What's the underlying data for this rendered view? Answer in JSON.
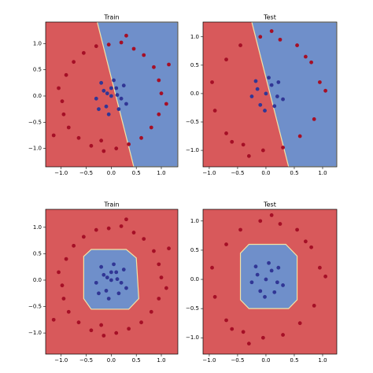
{
  "chart_data": [
    {
      "type": "scatter",
      "title": "Train",
      "xlim": [
        -1.31,
        1.33
      ],
      "ylim": [
        -1.35,
        1.41
      ],
      "xticks": [
        {
          "value": -1,
          "label": "−1.0"
        },
        {
          "value": -0.5,
          "label": "−0.5"
        },
        {
          "value": 0,
          "label": "0.0"
        },
        0.5,
        {
          "value": 1,
          "label": "1.0"
        }
      ],
      "yticks": [
        {
          "value": -1,
          "label": "−1.0"
        },
        {
          "value": -0.5,
          "label": "−0.5"
        },
        {
          "value": 0,
          "label": "0.0"
        },
        0.5,
        {
          "value": 1,
          "label": "1.0"
        }
      ],
      "background": "#d8595b",
      "region": {
        "color": "#6f8fca",
        "x": [
          -0.28,
          1.33,
          1.33,
          0.45
        ],
        "y": [
          1.41,
          1.41,
          -1.35,
          -1.35
        ]
      },
      "series": [
        {
          "color": "#a50f26",
          "x": [
            1.0,
            0.95,
            0.85,
            0.65,
            0.45,
            0.2,
            -0.05,
            -0.3,
            -0.55,
            -0.75,
            -0.9,
            -1.05,
            -0.98,
            -0.95,
            -0.85,
            -0.65,
            -0.4,
            -0.15,
            0.1,
            0.35,
            0.6,
            0.8,
            0.95,
            1.1,
            1.15,
            -1.15,
            0.3,
            -0.2
          ],
          "y": [
            0.05,
            0.3,
            0.55,
            0.78,
            0.9,
            1.02,
            0.98,
            0.95,
            0.82,
            0.65,
            0.4,
            0.15,
            -0.1,
            -0.35,
            -0.6,
            -0.8,
            -0.95,
            -1.05,
            -1.0,
            -0.92,
            -0.8,
            -0.6,
            -0.35,
            -0.15,
            0.6,
            -0.75,
            1.15,
            -0.85
          ]
        },
        {
          "color": "#313695",
          "x": [
            0,
            0.1,
            -0.15,
            0.2,
            -0.1,
            0.05,
            -0.3,
            0.25,
            -0.2,
            0.15,
            -0.05,
            0.3,
            -0.25,
            0.0,
            0.12,
            -0.08
          ],
          "y": [
            0,
            0.15,
            0.1,
            -0.05,
            -0.2,
            0.3,
            -0.05,
            0.2,
            0.25,
            -0.25,
            -0.35,
            -0.15,
            -0.25,
            0.15,
            0.02,
            0.05
          ]
        }
      ]
    },
    {
      "type": "scatter",
      "title": "Test",
      "xlim": [
        -1.11,
        1.25
      ],
      "ylim": [
        -1.29,
        1.26
      ],
      "xticks": [
        {
          "value": -1,
          "label": "−1.0"
        },
        {
          "value": -0.5,
          "label": "−0.5"
        },
        {
          "value": 0,
          "label": "0.0"
        },
        0.5,
        {
          "value": 1,
          "label": "1.0"
        }
      ],
      "yticks": [
        {
          "value": -1,
          "label": "−1.0"
        },
        {
          "value": -0.5,
          "label": "−0.5"
        },
        {
          "value": 0,
          "label": "0.0"
        },
        0.5,
        {
          "value": 1,
          "label": "1.0"
        }
      ],
      "background": "#d8595b",
      "region": {
        "color": "#6f8fca",
        "x": [
          -0.25,
          1.25,
          1.25,
          0.4
        ],
        "y": [
          1.26,
          1.26,
          -1.29,
          -1.29
        ]
      },
      "series": [
        {
          "color": "#a50f26",
          "x": [
            0.95,
            0.8,
            0.55,
            0.25,
            -0.1,
            -0.45,
            -0.7,
            -0.95,
            -0.9,
            -0.7,
            -0.4,
            -0.05,
            0.3,
            0.6,
            0.85,
            1.05,
            0.1,
            -0.6,
            0.7,
            -0.3
          ],
          "y": [
            0.2,
            0.55,
            0.85,
            0.95,
            1.0,
            0.85,
            0.6,
            0.2,
            -0.3,
            -0.7,
            -0.9,
            -1.0,
            -0.95,
            -0.75,
            -0.45,
            0.05,
            1.1,
            -0.85,
            0.65,
            -1.1
          ]
        },
        {
          "color": "#313695",
          "x": [
            0,
            0.1,
            -0.15,
            0.2,
            -0.1,
            0.05,
            -0.25,
            0.22,
            -0.18,
            0.15,
            -0.02,
            0.3
          ],
          "y": [
            0,
            0.15,
            0.08,
            -0.05,
            -0.2,
            0.28,
            -0.05,
            0.2,
            0.22,
            -0.22,
            -0.3,
            -0.1
          ]
        }
      ]
    },
    {
      "type": "scatter",
      "title": "Train",
      "xlim": [
        -1.31,
        1.33
      ],
      "ylim": [
        -1.4,
        1.34
      ],
      "xticks": [
        {
          "value": -1,
          "label": "−1.0"
        },
        {
          "value": -0.5,
          "label": "−0.5"
        },
        {
          "value": 0,
          "label": "0.0"
        },
        0.5,
        {
          "value": 1,
          "label": "1.0"
        }
      ],
      "yticks": [
        {
          "value": -1,
          "label": "−1.0"
        },
        {
          "value": -0.5,
          "label": "−0.5"
        },
        {
          "value": 0,
          "label": "0.0"
        },
        0.5,
        {
          "value": 1,
          "label": "1.0"
        }
      ],
      "background": "#d8595b",
      "region": {
        "color": "#6f8fca",
        "x": [
          -0.55,
          -0.4,
          0.3,
          0.5,
          0.55,
          0.35,
          -0.4,
          -0.55
        ],
        "y": [
          0.45,
          0.58,
          0.58,
          0.42,
          -0.35,
          -0.55,
          -0.55,
          -0.35
        ]
      },
      "series": [
        {
          "color": "#a50f26",
          "x": [
            1.0,
            0.95,
            0.85,
            0.65,
            0.45,
            0.2,
            -0.05,
            -0.3,
            -0.55,
            -0.75,
            -0.9,
            -1.05,
            -0.98,
            -0.95,
            -0.85,
            -0.65,
            -0.4,
            -0.15,
            0.1,
            0.35,
            0.6,
            0.8,
            0.95,
            1.1,
            1.15,
            -1.15,
            0.3,
            -0.2
          ],
          "y": [
            0.05,
            0.3,
            0.55,
            0.78,
            0.9,
            1.02,
            0.98,
            0.95,
            0.82,
            0.65,
            0.4,
            0.15,
            -0.1,
            -0.35,
            -0.6,
            -0.8,
            -0.95,
            -1.05,
            -1.0,
            -0.92,
            -0.8,
            -0.6,
            -0.35,
            -0.15,
            0.6,
            -0.75,
            1.15,
            -0.85
          ]
        },
        {
          "color": "#313695",
          "x": [
            0,
            0.1,
            -0.15,
            0.2,
            -0.1,
            0.05,
            -0.3,
            0.25,
            -0.2,
            0.15,
            -0.05,
            0.3,
            -0.25,
            0.0,
            0.12,
            -0.08
          ],
          "y": [
            0,
            0.15,
            0.1,
            -0.05,
            -0.2,
            0.3,
            -0.05,
            0.2,
            0.25,
            -0.25,
            -0.35,
            -0.15,
            -0.25,
            0.15,
            0.02,
            0.05
          ]
        }
      ]
    },
    {
      "type": "scatter",
      "title": "Test",
      "xlim": [
        -1.11,
        1.25
      ],
      "ylim": [
        -1.28,
        1.2
      ],
      "xticks": [
        {
          "value": -1,
          "label": "−1.0"
        },
        {
          "value": -0.5,
          "label": "−0.5"
        },
        {
          "value": 0,
          "label": "0.0"
        },
        0.5,
        {
          "value": 1,
          "label": "1.0"
        }
      ],
      "yticks": [
        {
          "value": -1,
          "label": "−1.0"
        },
        {
          "value": -0.5,
          "label": "−0.5"
        },
        {
          "value": 0,
          "label": "0.0"
        },
        0.5,
        {
          "value": 1,
          "label": "1.0"
        }
      ],
      "background": "#d8595b",
      "region": {
        "color": "#6f8fca",
        "x": [
          -0.45,
          -0.3,
          0.35,
          0.55,
          0.55,
          0.4,
          -0.3,
          -0.45
        ],
        "y": [
          0.45,
          0.6,
          0.6,
          0.4,
          -0.35,
          -0.5,
          -0.5,
          -0.35
        ]
      },
      "series": [
        {
          "color": "#a50f26",
          "x": [
            0.95,
            0.8,
            0.55,
            0.25,
            -0.1,
            -0.45,
            -0.7,
            -0.95,
            -0.9,
            -0.7,
            -0.4,
            -0.05,
            0.3,
            0.6,
            0.85,
            1.05,
            0.1,
            -0.6,
            0.7,
            -0.3
          ],
          "y": [
            0.2,
            0.55,
            0.85,
            0.95,
            1.0,
            0.85,
            0.6,
            0.2,
            -0.3,
            -0.7,
            -0.9,
            -1.0,
            -0.95,
            -0.75,
            -0.45,
            0.05,
            1.1,
            -0.85,
            0.65,
            -1.1
          ]
        },
        {
          "color": "#313695",
          "x": [
            0,
            0.1,
            -0.15,
            0.2,
            -0.1,
            0.05,
            -0.25,
            0.22,
            -0.18,
            0.15,
            -0.02,
            0.3
          ],
          "y": [
            0,
            0.15,
            0.08,
            -0.05,
            -0.2,
            0.28,
            -0.05,
            0.2,
            0.22,
            -0.22,
            -0.3,
            -0.1
          ]
        }
      ]
    }
  ]
}
